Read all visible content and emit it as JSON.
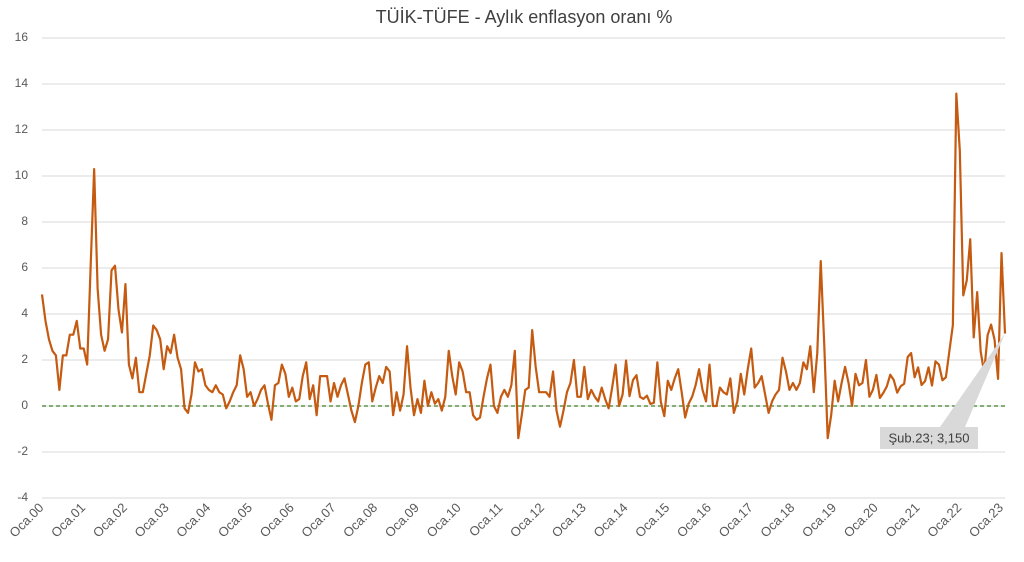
{
  "chart_data": {
    "type": "line",
    "title": "TÜİK-TÜFE - Aylık enflasyon oranı %",
    "categories": [
      "Oca.00",
      null,
      null,
      null,
      null,
      null,
      null,
      null,
      null,
      null,
      null,
      null,
      "Oca.01",
      null,
      null,
      null,
      null,
      null,
      null,
      null,
      null,
      null,
      null,
      null,
      "Oca.02",
      null,
      null,
      null,
      null,
      null,
      null,
      null,
      null,
      null,
      null,
      null,
      "Oca.03",
      null,
      null,
      null,
      null,
      null,
      null,
      null,
      null,
      null,
      null,
      null,
      "Oca.04",
      null,
      null,
      null,
      null,
      null,
      null,
      null,
      null,
      null,
      null,
      null,
      "Oca.05",
      null,
      null,
      null,
      null,
      null,
      null,
      null,
      null,
      null,
      null,
      null,
      "Oca.06",
      null,
      null,
      null,
      null,
      null,
      null,
      null,
      null,
      null,
      null,
      null,
      "Oca.07",
      null,
      null,
      null,
      null,
      null,
      null,
      null,
      null,
      null,
      null,
      null,
      "Oca.08",
      null,
      null,
      null,
      null,
      null,
      null,
      null,
      null,
      null,
      null,
      null,
      "Oca.09",
      null,
      null,
      null,
      null,
      null,
      null,
      null,
      null,
      null,
      null,
      null,
      "Oca.10",
      null,
      null,
      null,
      null,
      null,
      null,
      null,
      null,
      null,
      null,
      null,
      "Oca.11",
      null,
      null,
      null,
      null,
      null,
      null,
      null,
      null,
      null,
      null,
      null,
      "Oca.12",
      null,
      null,
      null,
      null,
      null,
      null,
      null,
      null,
      null,
      null,
      null,
      "Oca.13",
      null,
      null,
      null,
      null,
      null,
      null,
      null,
      null,
      null,
      null,
      null,
      "Oca.14",
      null,
      null,
      null,
      null,
      null,
      null,
      null,
      null,
      null,
      null,
      null,
      "Oca.15",
      null,
      null,
      null,
      null,
      null,
      null,
      null,
      null,
      null,
      null,
      null,
      "Oca.16",
      null,
      null,
      null,
      null,
      null,
      null,
      null,
      null,
      null,
      null,
      null,
      "Oca.17",
      null,
      null,
      null,
      null,
      null,
      null,
      null,
      null,
      null,
      null,
      null,
      "Oca.18",
      null,
      null,
      null,
      null,
      null,
      null,
      null,
      null,
      null,
      null,
      null,
      "Oca.19",
      null,
      null,
      null,
      null,
      null,
      null,
      null,
      null,
      null,
      null,
      null,
      "Oca.20",
      null,
      null,
      null,
      null,
      null,
      null,
      null,
      null,
      null,
      null,
      null,
      "Oca.21",
      null,
      null,
      null,
      null,
      null,
      null,
      null,
      null,
      null,
      null,
      null,
      "Oca.22",
      null,
      null,
      null,
      null,
      null,
      null,
      null,
      null,
      null,
      null,
      null,
      "Oca.23",
      null
    ],
    "values": [
      4.85,
      3.7,
      2.9,
      2.4,
      2.2,
      0.7,
      2.2,
      2.2,
      3.1,
      3.1,
      3.7,
      2.5,
      2.5,
      1.8,
      6.1,
      10.3,
      5.1,
      3.1,
      2.4,
      2.9,
      5.9,
      6.1,
      4.2,
      3.2,
      5.3,
      1.8,
      1.2,
      2.1,
      0.6,
      0.6,
      1.4,
      2.2,
      3.5,
      3.3,
      2.9,
      1.6,
      2.6,
      2.3,
      3.1,
      2.1,
      1.6,
      -0.1,
      -0.3,
      0.5,
      1.9,
      1.5,
      1.6,
      0.9,
      0.7,
      0.6,
      0.9,
      0.6,
      0.5,
      -0.1,
      0.2,
      0.6,
      0.9,
      2.2,
      1.6,
      0.4,
      0.6,
      0.0,
      0.3,
      0.7,
      0.9,
      0.1,
      -0.6,
      0.9,
      1.0,
      1.8,
      1.4,
      0.4,
      0.8,
      0.2,
      0.3,
      1.3,
      1.9,
      0.3,
      0.9,
      -0.4,
      1.3,
      1.3,
      1.3,
      0.2,
      1.0,
      0.4,
      0.9,
      1.2,
      0.5,
      -0.2,
      -0.7,
      0.0,
      1.0,
      1.8,
      1.9,
      0.2,
      0.8,
      1.3,
      1.0,
      1.7,
      1.5,
      -0.4,
      0.6,
      -0.2,
      0.5,
      2.6,
      0.8,
      -0.4,
      0.3,
      -0.3,
      1.1,
      0.0,
      0.6,
      0.1,
      0.3,
      -0.2,
      0.4,
      2.4,
      1.3,
      0.5,
      1.9,
      1.5,
      0.6,
      0.6,
      -0.4,
      -0.6,
      -0.5,
      0.4,
      1.2,
      1.8,
      0.0,
      -0.3,
      0.4,
      0.7,
      0.4,
      0.9,
      2.4,
      -1.4,
      -0.4,
      0.7,
      0.8,
      3.3,
      1.7,
      0.6,
      0.6,
      0.6,
      0.4,
      1.5,
      -0.2,
      -0.9,
      -0.2,
      0.6,
      1.0,
      2.0,
      0.4,
      0.4,
      1.7,
      0.3,
      0.7,
      0.4,
      0.2,
      0.8,
      0.3,
      -0.1,
      0.8,
      1.8,
      0.0,
      0.5,
      1.98,
      0.43,
      1.13,
      1.34,
      0.4,
      0.31,
      0.45,
      0.09,
      0.14,
      1.9,
      0.18,
      -0.44,
      1.1,
      0.7,
      1.2,
      1.6,
      0.6,
      -0.5,
      0.1,
      0.4,
      0.9,
      1.6,
      0.7,
      0.2,
      1.8,
      0.0,
      0.0,
      0.8,
      0.6,
      0.5,
      1.2,
      -0.3,
      0.2,
      1.4,
      0.5,
      1.6,
      2.5,
      0.8,
      1.0,
      1.3,
      0.5,
      -0.3,
      0.2,
      0.5,
      0.7,
      2.1,
      1.5,
      0.7,
      1.0,
      0.7,
      1.0,
      1.9,
      1.6,
      2.6,
      0.6,
      2.3,
      6.3,
      2.7,
      -1.4,
      -0.4,
      1.1,
      0.2,
      1.0,
      1.7,
      1.0,
      0.0,
      1.4,
      0.9,
      1.0,
      2.0,
      0.4,
      0.7,
      1.35,
      0.35,
      0.57,
      0.85,
      1.36,
      1.13,
      0.58,
      0.86,
      0.97,
      2.13,
      2.3,
      1.25,
      1.68,
      0.91,
      1.08,
      1.68,
      0.89,
      1.94,
      1.8,
      1.12,
      1.25,
      2.39,
      3.51,
      13.58,
      11.1,
      4.81,
      5.46,
      7.25,
      2.98,
      4.95,
      2.37,
      1.46,
      3.08,
      3.54,
      2.88,
      1.18,
      6.65,
      3.15
    ],
    "color": "#c55a11",
    "annotation": "Şub.23; 3,150",
    "ylim": [
      -4,
      16
    ],
    "yticks": [
      -4,
      -2,
      0,
      2,
      4,
      6,
      8,
      10,
      12,
      14,
      16
    ],
    "grid": true,
    "zero_line_color": "#3a7d22"
  }
}
